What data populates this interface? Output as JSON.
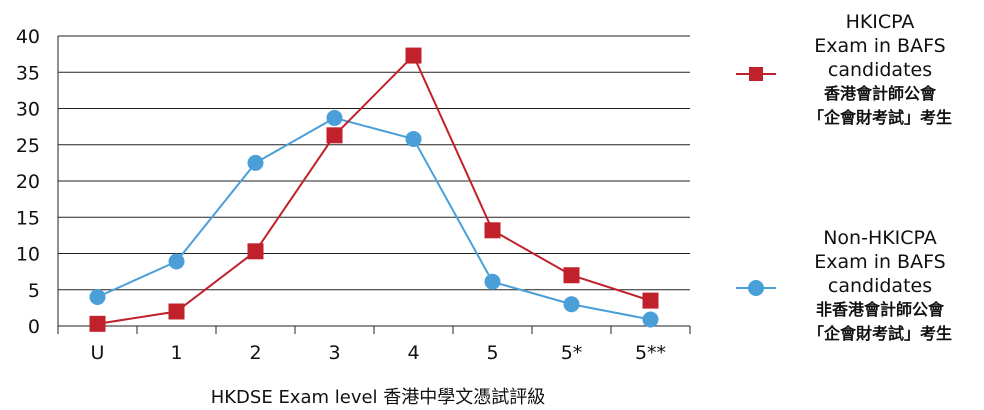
{
  "chart_data": {
    "type": "line",
    "title": "",
    "xlabel": "HKDSE Exam level 香港中學文憑試評級",
    "ylabel": "",
    "categories": [
      "U",
      "1",
      "2",
      "3",
      "4",
      "5",
      "5*",
      "5**"
    ],
    "ylim": [
      0,
      40
    ],
    "yticks": [
      "0",
      "5",
      "10",
      "15",
      "20",
      "25",
      "30",
      "35",
      "40"
    ],
    "grid": true,
    "legend_position": "right",
    "series": [
      {
        "name_en": "HKICPA Exam in BAFS candidates",
        "name_zh": "香港會計師公會「企會財考試」考生",
        "color": "#c0212b",
        "marker": "square",
        "values": [
          0.3,
          2.0,
          10.3,
          26.3,
          37.3,
          13.2,
          7.0,
          3.5
        ]
      },
      {
        "name_en": "Non-HKICPA Exam in BAFS candidates",
        "name_zh": "非香港會計師公會「企會財考試」考生",
        "color": "#4a9fd8",
        "marker": "circle",
        "values": [
          4.0,
          8.9,
          22.5,
          28.7,
          25.8,
          6.1,
          3.0,
          0.9
        ]
      }
    ]
  },
  "legend": {
    "items": [
      {
        "en_lines": [
          "HKICPA",
          "Exam in BAFS",
          "candidates"
        ],
        "zh_lines": [
          "香港會計師公會",
          "「企會財考試」考生"
        ]
      },
      {
        "en_lines": [
          "Non-HKICPA",
          "Exam in BAFS",
          "candidates"
        ],
        "zh_lines": [
          "非香港會計師公會",
          "「企會財考試」考生"
        ]
      }
    ]
  }
}
